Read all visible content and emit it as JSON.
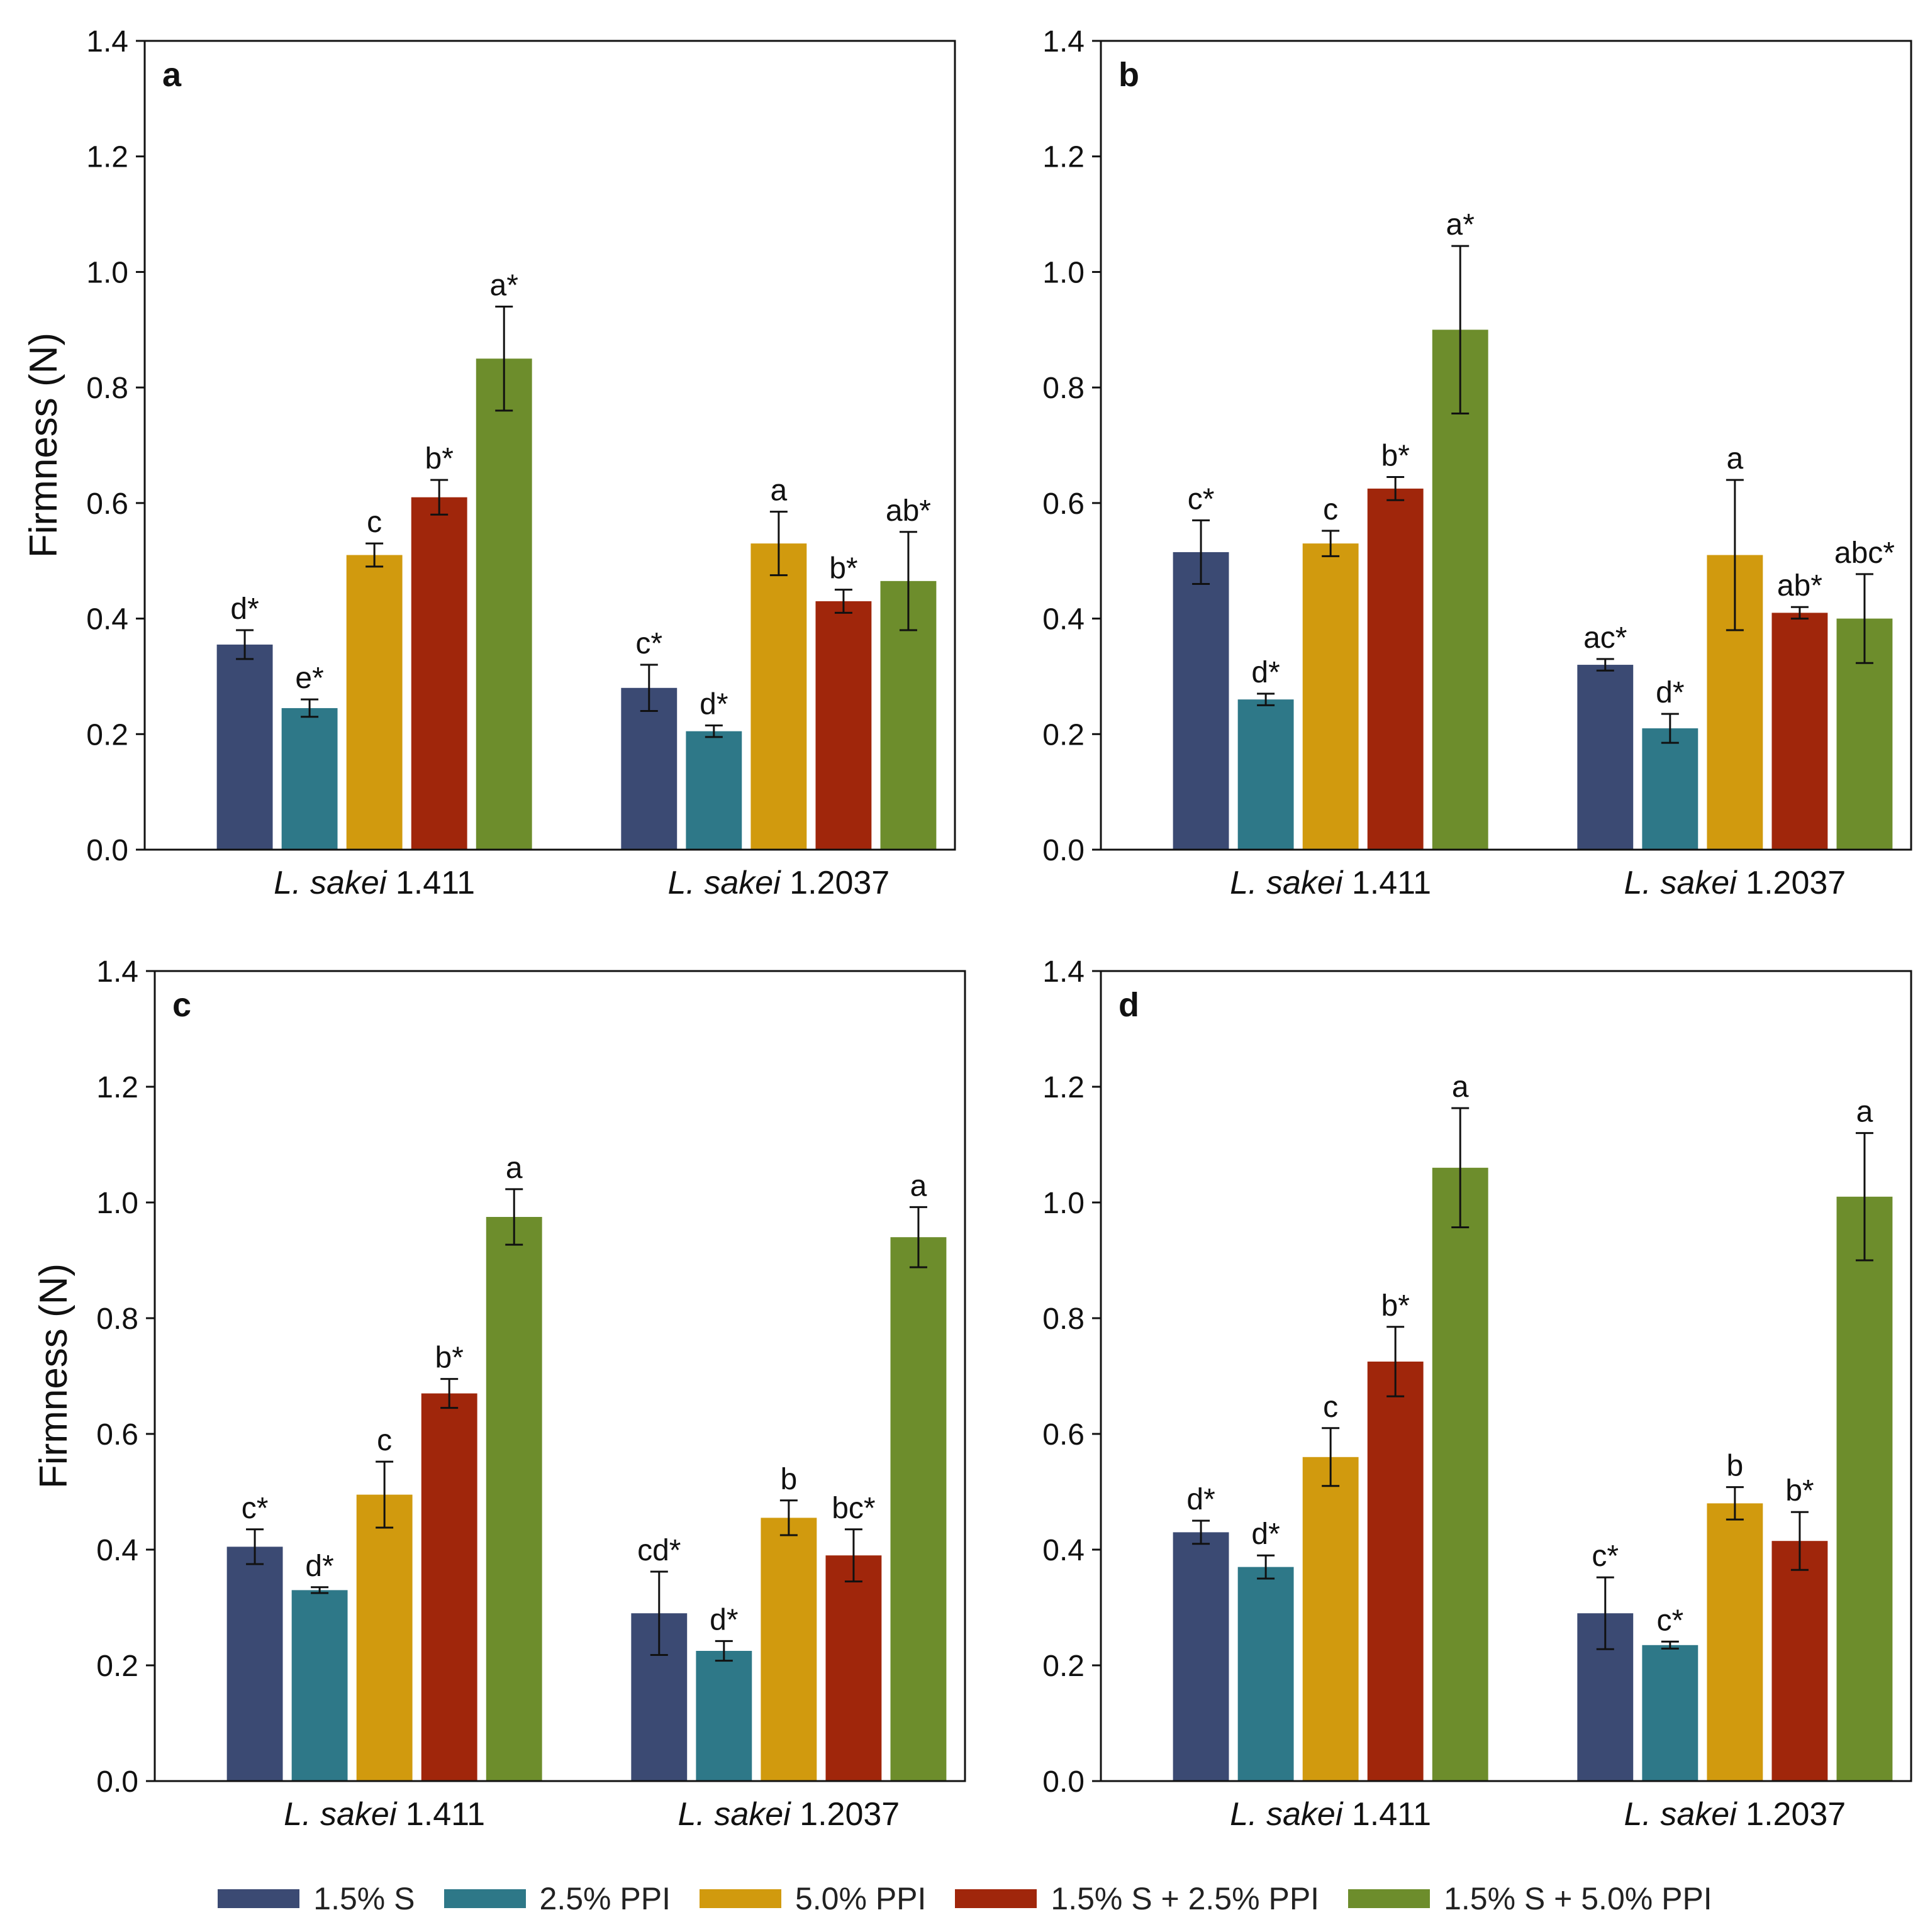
{
  "chart_data": [
    {
      "type": "bar",
      "panel_label": "a",
      "ylabel": "Firmness (N)",
      "ylim": [
        0,
        1.4
      ],
      "yticks": [
        "0.0",
        "0.2",
        "0.4",
        "0.6",
        "0.8",
        "1.0",
        "1.2",
        "1.4"
      ],
      "groups": [
        {
          "pre": "L. sakei",
          "post": " 1.411"
        },
        {
          "pre": "L. sakei",
          "post": " 1.2037"
        }
      ],
      "values": [
        [
          0.355,
          0.245,
          0.51,
          0.61,
          0.85
        ],
        [
          0.28,
          0.205,
          0.53,
          0.43,
          0.465
        ]
      ],
      "errors": [
        [
          0.025,
          0.015,
          0.02,
          0.03,
          0.09
        ],
        [
          0.04,
          0.01,
          0.055,
          0.02,
          0.085
        ]
      ],
      "letters": [
        [
          "d*",
          "e*",
          "c",
          "b*",
          "a*"
        ],
        [
          "c*",
          "d*",
          "a",
          "b*",
          "ab*"
        ]
      ]
    },
    {
      "type": "bar",
      "panel_label": "b",
      "ylabel": "",
      "ylim": [
        0,
        1.4
      ],
      "yticks": [
        "0.0",
        "0.2",
        "0.4",
        "0.6",
        "0.8",
        "1.0",
        "1.2",
        "1.4"
      ],
      "groups": [
        {
          "pre": "L. sakei",
          "post": " 1.411"
        },
        {
          "pre": "L. sakei",
          "post": " 1.2037"
        }
      ],
      "values": [
        [
          0.515,
          0.26,
          0.53,
          0.625,
          0.9
        ],
        [
          0.32,
          0.21,
          0.51,
          0.41,
          0.4
        ]
      ],
      "errors": [
        [
          0.055,
          0.01,
          0.022,
          0.02,
          0.145
        ],
        [
          0.01,
          0.025,
          0.13,
          0.01,
          0.077
        ]
      ],
      "letters": [
        [
          "c*",
          "d*",
          "c",
          "b*",
          "a*"
        ],
        [
          "ac*",
          "d*",
          "a",
          "ab*",
          "abc*"
        ]
      ]
    },
    {
      "type": "bar",
      "panel_label": "c",
      "ylabel": "Firmness (N)",
      "ylim": [
        0,
        1.4
      ],
      "yticks": [
        "0.0",
        "0.2",
        "0.4",
        "0.6",
        "0.8",
        "1.0",
        "1.2",
        "1.4"
      ],
      "groups": [
        {
          "pre": "L. sakei",
          "post": " 1.411"
        },
        {
          "pre": "L. sakei",
          "post": " 1.2037"
        }
      ],
      "values": [
        [
          0.405,
          0.33,
          0.495,
          0.67,
          0.975
        ],
        [
          0.29,
          0.225,
          0.455,
          0.39,
          0.94
        ]
      ],
      "errors": [
        [
          0.03,
          0.005,
          0.057,
          0.025,
          0.048
        ],
        [
          0.072,
          0.017,
          0.03,
          0.045,
          0.052
        ]
      ],
      "letters": [
        [
          "c*",
          "d*",
          "c",
          "b*",
          "a"
        ],
        [
          "cd*",
          "d*",
          "b",
          "bc*",
          "a"
        ]
      ]
    },
    {
      "type": "bar",
      "panel_label": "d",
      "ylabel": "",
      "ylim": [
        0,
        1.4
      ],
      "yticks": [
        "0.0",
        "0.2",
        "0.4",
        "0.6",
        "0.8",
        "1.0",
        "1.2",
        "1.4"
      ],
      "groups": [
        {
          "pre": "L. sakei",
          "post": " 1.411"
        },
        {
          "pre": "L. sakei",
          "post": " 1.2037"
        }
      ],
      "values": [
        [
          0.43,
          0.37,
          0.56,
          0.725,
          1.06
        ],
        [
          0.29,
          0.235,
          0.48,
          0.415,
          1.01
        ]
      ],
      "errors": [
        [
          0.02,
          0.02,
          0.05,
          0.06,
          0.103
        ],
        [
          0.062,
          0.006,
          0.028,
          0.05,
          0.11
        ]
      ],
      "letters": [
        [
          "d*",
          "d*",
          "c",
          "b*",
          "a"
        ],
        [
          "c*",
          "c*",
          "b",
          "b*",
          "a"
        ]
      ]
    }
  ],
  "legend": [
    {
      "label": "1.5% S",
      "color": "#3b4a73"
    },
    {
      "label": "2.5% PPI",
      "color": "#2e7888"
    },
    {
      "label": "5.0% PPI",
      "color": "#d19a0e"
    },
    {
      "label": "1.5% S + 2.5% PPI",
      "color": "#a0260b"
    },
    {
      "label": "1.5% S + 5.0% PPI",
      "color": "#6d8d2c"
    }
  ]
}
